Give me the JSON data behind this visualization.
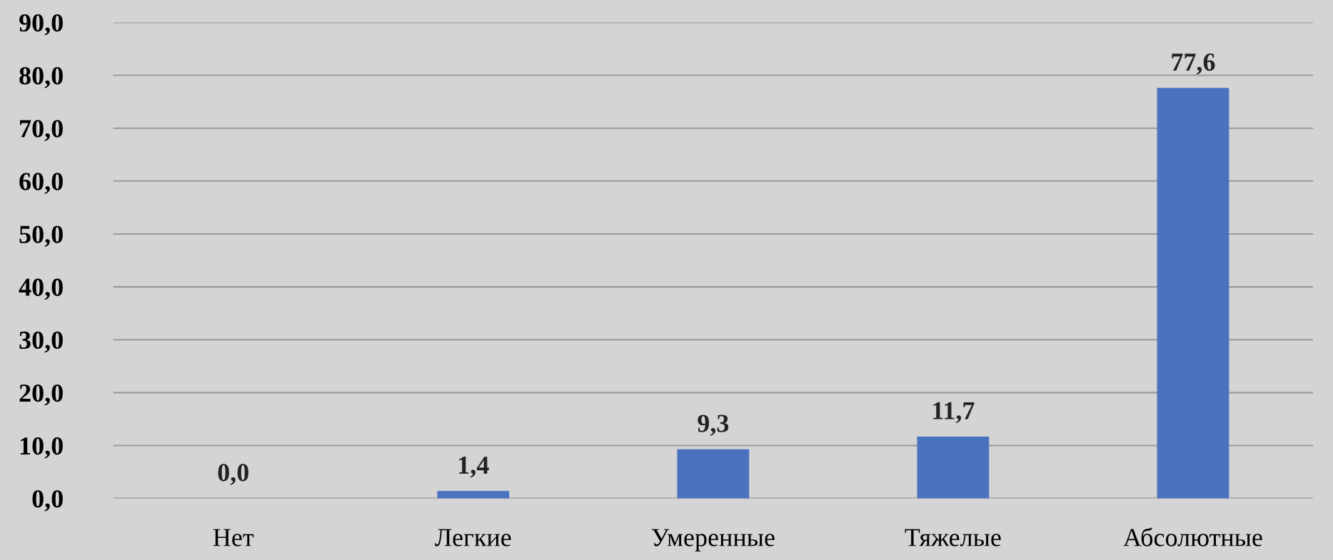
{
  "chart_data": {
    "type": "bar",
    "categories": [
      "Нет",
      "Легкие",
      "Умеренные",
      "Тяжелые",
      "Абсолютные"
    ],
    "values": [
      0.0,
      1.4,
      9.3,
      11.7,
      77.6
    ],
    "value_labels": [
      "0,0",
      "1,4",
      "9,3",
      "11,7",
      "77,6"
    ],
    "color": "#4a72c0",
    "ylim": [
      0,
      90
    ],
    "yticks": [
      {
        "value": 0,
        "label": "0,0"
      },
      {
        "value": 10,
        "label": "10,0"
      },
      {
        "value": 20,
        "label": "20,0"
      },
      {
        "value": 30,
        "label": "30,0"
      },
      {
        "value": 40,
        "label": "40,0"
      },
      {
        "value": 50,
        "label": "50,0"
      },
      {
        "value": 60,
        "label": "60,0"
      },
      {
        "value": 70,
        "label": "70,0"
      },
      {
        "value": 80,
        "label": "80,0"
      },
      {
        "value": 90,
        "label": "90,0"
      }
    ],
    "grid": "y"
  }
}
